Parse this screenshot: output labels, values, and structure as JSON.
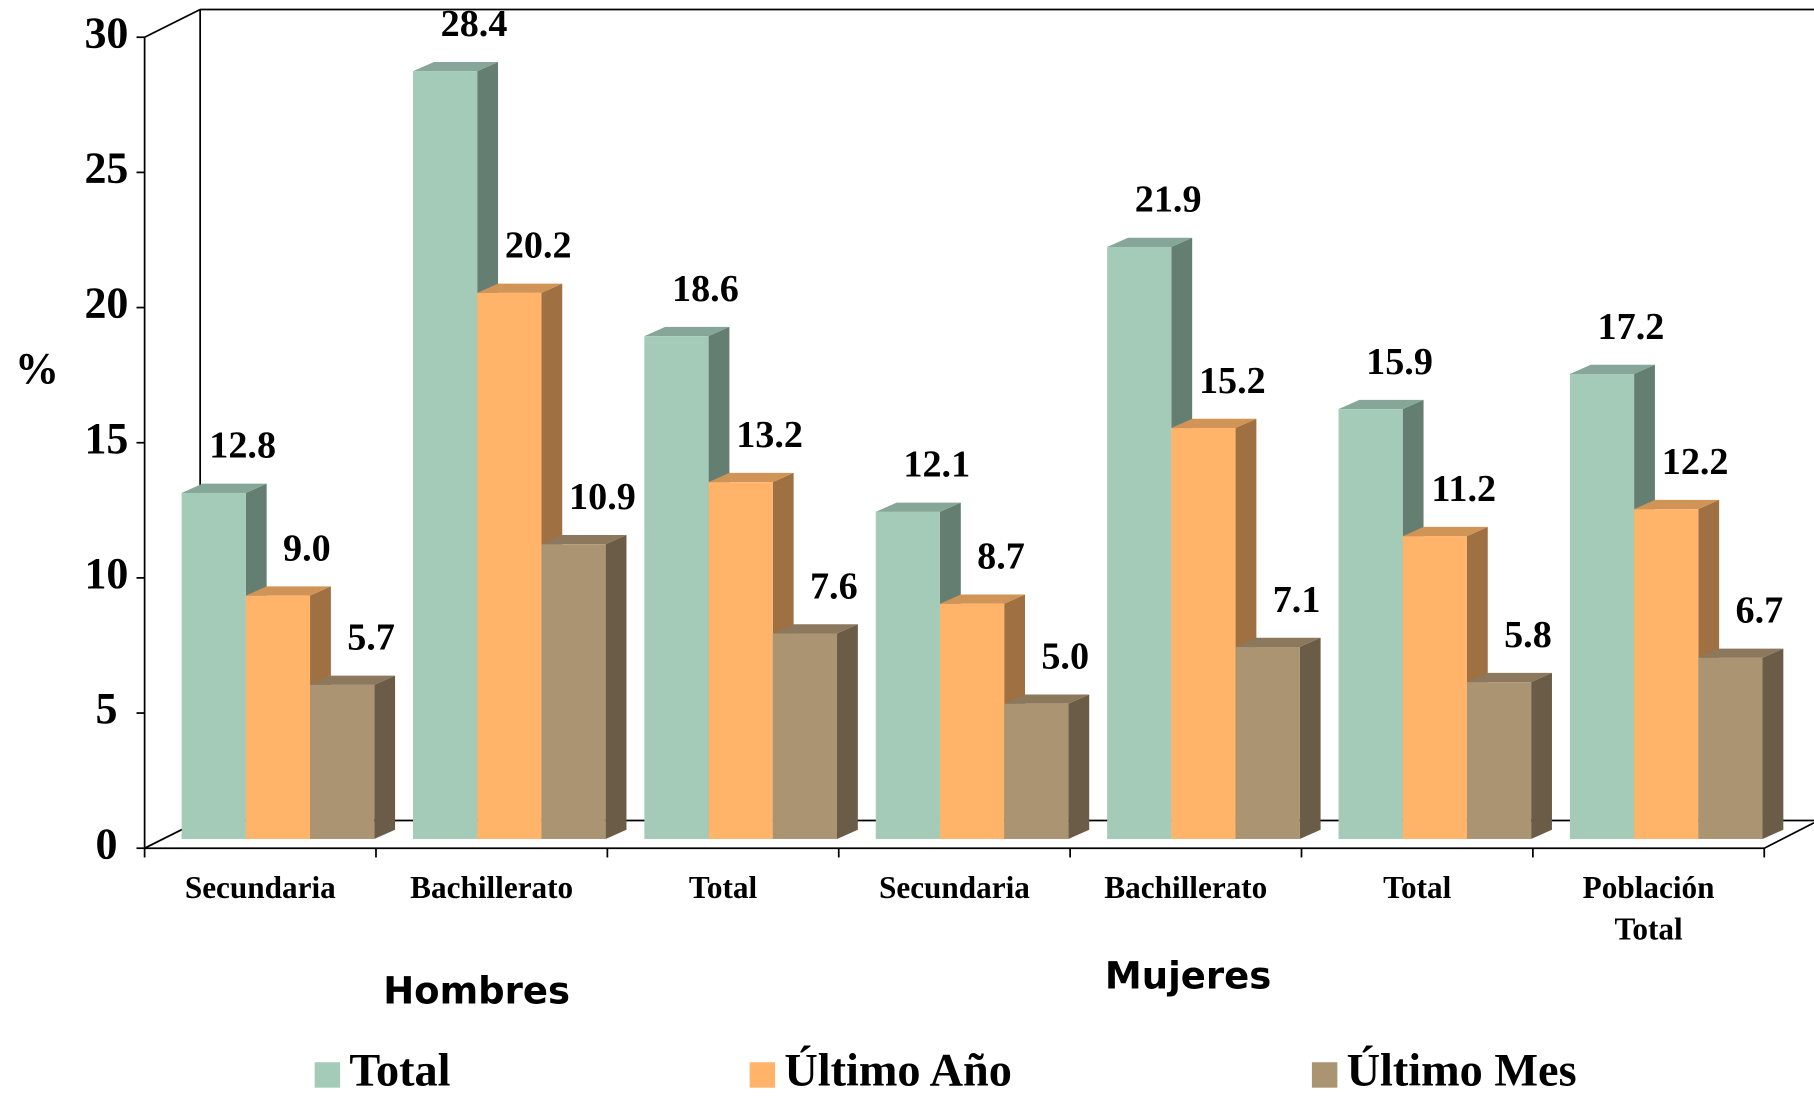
{
  "chart_data": {
    "type": "bar3d",
    "ylabel": "%",
    "categories": [
      "Secundaria",
      "Bachillerato",
      "Total",
      "Secundaria",
      "Bachillerato",
      "Total",
      "Población Total"
    ],
    "groups": [
      "Hombres",
      "Mujeres"
    ],
    "series": [
      {
        "name": "Total",
        "color": "#a3cbb8",
        "values": [
          12.8,
          28.4,
          18.6,
          12.1,
          21.9,
          15.9,
          17.2
        ],
        "value_labels": [
          "12.8",
          "28.4",
          "18.6",
          "12.1",
          "21.9",
          "15.9",
          "17.2"
        ]
      },
      {
        "name": "Último Año",
        "color": "#ffb46a",
        "values": [
          9.0,
          20.2,
          13.2,
          8.7,
          15.2,
          11.2,
          12.2
        ],
        "value_labels": [
          "9.0",
          "20.2",
          "13.2",
          "8.7",
          "15.2",
          "11.2",
          "12.2"
        ]
      },
      {
        "name": "Último Mes",
        "color": "#ab9472",
        "values": [
          5.7,
          10.9,
          7.6,
          5.0,
          7.1,
          5.8,
          6.7
        ],
        "value_labels": [
          "5.7",
          "10.9",
          "7.6",
          "5.0",
          "7.1",
          "5.8",
          "6.7"
        ]
      }
    ],
    "ylim": [
      0,
      30
    ],
    "yticks": [
      0,
      5,
      10,
      15,
      20,
      25,
      30
    ]
  }
}
